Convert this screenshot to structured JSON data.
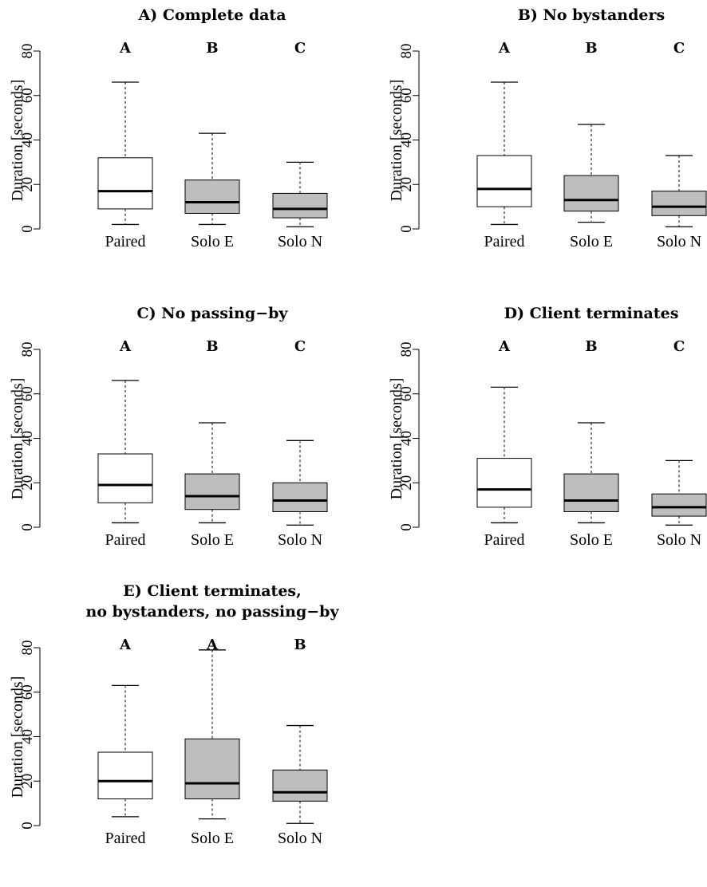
{
  "chart_data": [
    {
      "type": "boxplot",
      "title_lines": [
        "A) Complete data"
      ],
      "ylabel": "Duration [seconds]",
      "ylim": [
        0,
        80
      ],
      "yticks": [
        0,
        20,
        40,
        60,
        80
      ],
      "categories": [
        "Paired",
        "Solo E",
        "Solo N"
      ],
      "letters": [
        "A",
        "B",
        "C"
      ],
      "fills": [
        "#ffffff",
        "#bebebe",
        "#bebebe"
      ],
      "boxes": [
        {
          "min": 2,
          "q1": 9,
          "median": 17,
          "q3": 32,
          "max": 66
        },
        {
          "min": 2,
          "q1": 7,
          "median": 12,
          "q3": 22,
          "max": 43
        },
        {
          "min": 1,
          "q1": 5,
          "median": 9,
          "q3": 16,
          "max": 30
        }
      ]
    },
    {
      "type": "boxplot",
      "title_lines": [
        "B) No bystanders"
      ],
      "ylabel": "Duration [seconds]",
      "ylim": [
        0,
        80
      ],
      "yticks": [
        0,
        20,
        40,
        60,
        80
      ],
      "categories": [
        "Paired",
        "Solo E",
        "Solo N"
      ],
      "letters": [
        "A",
        "B",
        "C"
      ],
      "fills": [
        "#ffffff",
        "#bebebe",
        "#bebebe"
      ],
      "boxes": [
        {
          "min": 2,
          "q1": 10,
          "median": 18,
          "q3": 33,
          "max": 66
        },
        {
          "min": 3,
          "q1": 8,
          "median": 13,
          "q3": 24,
          "max": 47
        },
        {
          "min": 1,
          "q1": 6,
          "median": 10,
          "q3": 17,
          "max": 33
        }
      ]
    },
    {
      "type": "boxplot",
      "title_lines": [
        "C) No passing−by"
      ],
      "ylabel": "Duration [seconds]",
      "ylim": [
        0,
        80
      ],
      "yticks": [
        0,
        20,
        40,
        60,
        80
      ],
      "categories": [
        "Paired",
        "Solo E",
        "Solo N"
      ],
      "letters": [
        "A",
        "B",
        "C"
      ],
      "fills": [
        "#ffffff",
        "#bebebe",
        "#bebebe"
      ],
      "boxes": [
        {
          "min": 2,
          "q1": 11,
          "median": 19,
          "q3": 33,
          "max": 66
        },
        {
          "min": 2,
          "q1": 8,
          "median": 14,
          "q3": 24,
          "max": 47
        },
        {
          "min": 1,
          "q1": 7,
          "median": 12,
          "q3": 20,
          "max": 39
        }
      ]
    },
    {
      "type": "boxplot",
      "title_lines": [
        "D) Client terminates"
      ],
      "ylabel": "Duration [seconds]",
      "ylim": [
        0,
        80
      ],
      "yticks": [
        0,
        20,
        40,
        60,
        80
      ],
      "categories": [
        "Paired",
        "Solo E",
        "Solo N"
      ],
      "letters": [
        "A",
        "B",
        "C"
      ],
      "fills": [
        "#ffffff",
        "#bebebe",
        "#bebebe"
      ],
      "boxes": [
        {
          "min": 2,
          "q1": 9,
          "median": 17,
          "q3": 31,
          "max": 63
        },
        {
          "min": 2,
          "q1": 7,
          "median": 12,
          "q3": 24,
          "max": 47
        },
        {
          "min": 1,
          "q1": 5,
          "median": 9,
          "q3": 15,
          "max": 30
        }
      ]
    },
    {
      "type": "boxplot",
      "title_lines": [
        "E) Client terminates,",
        "no bystanders, no passing−by"
      ],
      "ylabel": "Duration [seconds]",
      "ylim": [
        0,
        80
      ],
      "yticks": [
        0,
        20,
        40,
        60,
        80
      ],
      "categories": [
        "Paired",
        "Solo E",
        "Solo N"
      ],
      "letters": [
        "A",
        "A",
        "B"
      ],
      "fills": [
        "#ffffff",
        "#bebebe",
        "#bebebe"
      ],
      "boxes": [
        {
          "min": 4,
          "q1": 12,
          "median": 20,
          "q3": 33,
          "max": 63
        },
        {
          "min": 3,
          "q1": 12,
          "median": 19,
          "q3": 39,
          "max": 79
        },
        {
          "min": 1,
          "q1": 11,
          "median": 15,
          "q3": 25,
          "max": 45
        }
      ]
    }
  ]
}
